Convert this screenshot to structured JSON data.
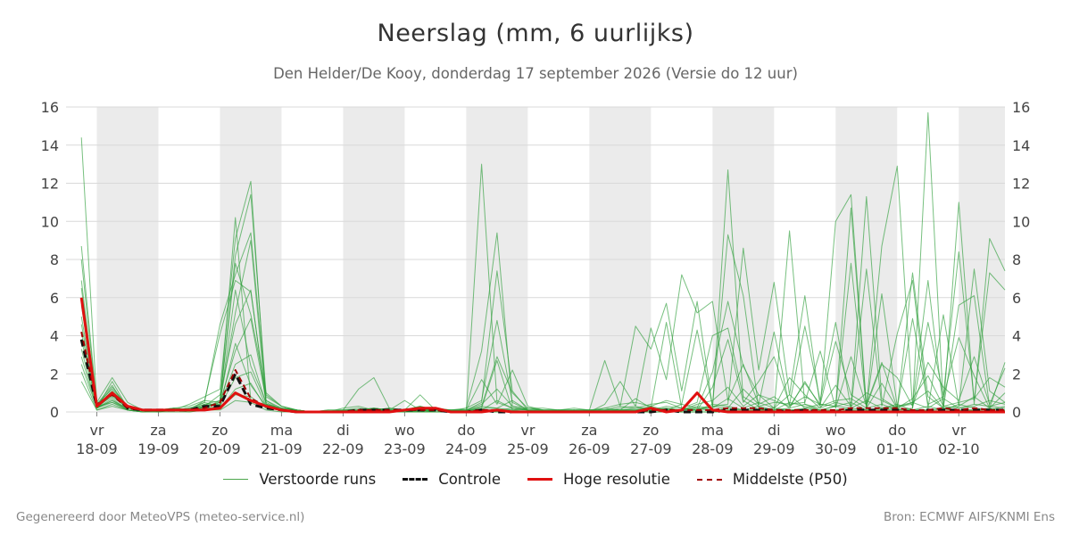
{
  "header": {
    "title": "Neerslag (mm, 6 uurlijks)",
    "subtitle": "Den Helder/De Kooy, donderdag 17 september 2026 (Versie do 12 uur)"
  },
  "footer": {
    "left": "Gegenereerd door MeteoVPS (meteo-service.nl)",
    "right": "Bron: ECMWF AIFS/KNMI Ens"
  },
  "colors": {
    "ensemble": "#2e9e3a",
    "control": "#111111",
    "hres": "#e01010",
    "p50": "#a00000",
    "weekend_band": "#ebebeb",
    "grid": "#d9d9d9"
  },
  "chart_data": {
    "type": "line",
    "title": "Neerslag (mm, 6 uurlijks)",
    "ylabel": "",
    "ylim": [
      0,
      16
    ],
    "yticks": [
      0,
      2,
      4,
      6,
      8,
      10,
      12,
      14,
      16
    ],
    "xlim": [
      "2026-09-17T12:00",
      "2026-10-02T18:00"
    ],
    "grid": true,
    "legend_position": "bottom",
    "x_tick_days": [
      {
        "day": "vr",
        "date": "18-09"
      },
      {
        "day": "za",
        "date": "19-09"
      },
      {
        "day": "zo",
        "date": "20-09"
      },
      {
        "day": "ma",
        "date": "21-09"
      },
      {
        "day": "di",
        "date": "22-09"
      },
      {
        "day": "wo",
        "date": "23-09"
      },
      {
        "day": "do",
        "date": "24-09"
      },
      {
        "day": "vr",
        "date": "25-09"
      },
      {
        "day": "za",
        "date": "26-09"
      },
      {
        "day": "zo",
        "date": "27-09"
      },
      {
        "day": "ma",
        "date": "28-09"
      },
      {
        "day": "di",
        "date": "29-09"
      },
      {
        "day": "wo",
        "date": "30-09"
      },
      {
        "day": "do",
        "date": "01-10"
      },
      {
        "day": "vr",
        "date": "02-10"
      }
    ],
    "shaded_day_bands": [
      [
        "2026-09-18T00:00",
        "2026-09-19T00:00"
      ],
      [
        "2026-09-20T00:00",
        "2026-09-21T00:00"
      ],
      [
        "2026-09-22T00:00",
        "2026-09-23T00:00"
      ],
      [
        "2026-09-24T00:00",
        "2026-09-25T00:00"
      ],
      [
        "2026-09-26T00:00",
        "2026-09-27T00:00"
      ],
      [
        "2026-09-28T00:00",
        "2026-09-29T00:00"
      ],
      [
        "2026-09-30T00:00",
        "2026-10-01T00:00"
      ],
      [
        "2026-10-02T00:00",
        "2026-10-02T18:00"
      ]
    ],
    "legend": [
      {
        "key": "ensemble",
        "label": "Verstoorde runs"
      },
      {
        "key": "control",
        "label": "Controle"
      },
      {
        "key": "hres",
        "label": "Hoge resolutie"
      },
      {
        "key": "p50",
        "label": "Middelste (P50)"
      }
    ],
    "x": [
      "2026-09-17T18:00",
      "2026-09-18T00:00",
      "2026-09-18T06:00",
      "2026-09-18T12:00",
      "2026-09-18T18:00",
      "2026-09-19T00:00",
      "2026-09-19T06:00",
      "2026-09-19T12:00",
      "2026-09-19T18:00",
      "2026-09-20T00:00",
      "2026-09-20T06:00",
      "2026-09-20T12:00",
      "2026-09-20T18:00",
      "2026-09-21T00:00",
      "2026-09-21T06:00",
      "2026-09-21T12:00",
      "2026-09-21T18:00",
      "2026-09-22T00:00",
      "2026-09-22T06:00",
      "2026-09-22T12:00",
      "2026-09-22T18:00",
      "2026-09-23T00:00",
      "2026-09-23T06:00",
      "2026-09-23T12:00",
      "2026-09-23T18:00",
      "2026-09-24T00:00",
      "2026-09-24T06:00",
      "2026-09-24T12:00",
      "2026-09-24T18:00",
      "2026-09-25T00:00",
      "2026-09-25T06:00",
      "2026-09-25T12:00",
      "2026-09-25T18:00",
      "2026-09-26T00:00",
      "2026-09-26T06:00",
      "2026-09-26T12:00",
      "2026-09-26T18:00",
      "2026-09-27T00:00",
      "2026-09-27T06:00",
      "2026-09-27T12:00",
      "2026-09-27T18:00",
      "2026-09-28T00:00",
      "2026-09-28T06:00",
      "2026-09-28T12:00",
      "2026-09-28T18:00",
      "2026-09-29T00:00",
      "2026-09-29T06:00",
      "2026-09-29T12:00",
      "2026-09-29T18:00",
      "2026-09-30T00:00",
      "2026-09-30T06:00",
      "2026-09-30T12:00",
      "2026-09-30T18:00",
      "2026-10-01T00:00",
      "2026-10-01T06:00",
      "2026-10-01T12:00",
      "2026-10-01T18:00",
      "2026-10-02T00:00",
      "2026-10-02T06:00",
      "2026-10-02T12:00",
      "2026-10-02T18:00"
    ],
    "series": [
      {
        "key": "control",
        "style": "dashed",
        "values": [
          3.8,
          0.3,
          1.0,
          0.2,
          0.1,
          0.1,
          0.1,
          0.1,
          0.3,
          0.3,
          2.0,
          0.4,
          0.2,
          0.1,
          0,
          0,
          0,
          0,
          0.1,
          0.1,
          0.1,
          0.1,
          0.1,
          0.1,
          0,
          0,
          0.1,
          0,
          0,
          0,
          0,
          0,
          0,
          0,
          0,
          0,
          0,
          0,
          0.1,
          0,
          0,
          0,
          0.1,
          0.1,
          0.1,
          0.1,
          0,
          0.1,
          0,
          0,
          0.1,
          0.1,
          0.1,
          0.1,
          0,
          0.1,
          0.1,
          0.1,
          0.1,
          0.1,
          0.1
        ]
      },
      {
        "key": "hres",
        "style": "solid",
        "values": [
          6.0,
          0.3,
          1.0,
          0.3,
          0.1,
          0.1,
          0.1,
          0.1,
          0.1,
          0.2,
          1.0,
          0.6,
          0.3,
          0.1,
          0,
          0,
          0,
          0,
          0,
          0,
          0,
          0.1,
          0.2,
          0.2,
          0,
          0,
          0,
          0.1,
          0,
          0,
          0,
          0,
          0,
          0,
          0,
          0,
          0,
          0.2,
          0,
          0.1,
          1.0,
          0.1,
          0,
          0,
          0,
          0,
          0,
          0,
          0,
          0,
          0,
          0,
          0,
          0,
          0,
          0,
          0,
          0,
          0,
          0,
          0
        ]
      },
      {
        "key": "p50",
        "style": "dashed",
        "values": [
          4.2,
          0.4,
          0.9,
          0.2,
          0.1,
          0.1,
          0.1,
          0.1,
          0.2,
          0.5,
          2.2,
          0.7,
          0.3,
          0.1,
          0,
          0,
          0,
          0,
          0.1,
          0.1,
          0.1,
          0.1,
          0.1,
          0.1,
          0,
          0,
          0.1,
          0.1,
          0,
          0,
          0,
          0,
          0,
          0,
          0,
          0,
          0,
          0.1,
          0.1,
          0.1,
          0.1,
          0.1,
          0.2,
          0.2,
          0.2,
          0.1,
          0.1,
          0.1,
          0.1,
          0.1,
          0.2,
          0.2,
          0.2,
          0.2,
          0.1,
          0.1,
          0.2,
          0.1,
          0.2,
          0.1,
          0.1
        ]
      }
    ],
    "ensemble_values": [
      [
        14.4,
        0.5,
        1.8,
        0.5,
        0.1,
        0.1,
        0.2,
        0.3,
        0.6,
        0.5,
        10.2,
        0.6,
        0.3,
        0.1,
        0,
        0,
        0,
        0.1,
        0.1,
        0.2,
        0.1,
        0.1,
        0.1,
        0.1,
        0,
        0,
        13.0,
        0.5,
        0.2,
        0.1,
        0,
        0.1,
        0.2,
        0.1,
        0,
        0.2,
        0.3,
        0.1,
        0.2,
        0.1,
        0.3,
        0.2,
        12.7,
        0.6,
        0.1,
        0.1,
        0.5,
        0.3,
        0.1,
        0.3,
        10.7,
        0.2,
        0.4,
        0.1,
        0.2,
        15.7,
        0.3,
        0.2,
        0.3,
        0.6,
        0.4
      ],
      [
        8.7,
        0.4,
        1.2,
        0.3,
        0.1,
        0.1,
        0.1,
        0.4,
        0.8,
        1.2,
        9.1,
        12.1,
        0.4,
        0.2,
        0.1,
        0,
        0,
        0.2,
        0.3,
        0.1,
        0.1,
        0,
        0.1,
        0,
        0.1,
        0.2,
        3.2,
        9.4,
        0.3,
        0.1,
        0,
        0.1,
        0,
        0.1,
        0.2,
        0.4,
        0.5,
        0.3,
        0.6,
        0.4,
        4.3,
        0.3,
        9.3,
        6.1,
        0.2,
        0.1,
        9.5,
        0.4,
        0.2,
        0.5,
        0.3,
        11.3,
        0.7,
        0.2,
        7.3,
        0.8,
        0.2,
        11.0,
        0.4,
        9.1,
        7.4
      ],
      [
        8.0,
        0.3,
        0.9,
        0.2,
        0.1,
        0,
        0.1,
        0.2,
        0.5,
        4.6,
        7.2,
        9.4,
        0.8,
        0.3,
        0.1,
        0,
        0.1,
        0.1,
        1.2,
        1.8,
        0.2,
        0.1,
        0,
        0.2,
        0.1,
        0.1,
        0.5,
        7.4,
        1.1,
        0.1,
        0.1,
        0,
        0.1,
        0.1,
        2.7,
        0.3,
        4.5,
        3.3,
        5.7,
        1.1,
        5.8,
        0.3,
        0.4,
        8.6,
        2.2,
        6.8,
        0.9,
        6.1,
        0.3,
        10.0,
        11.4,
        0.3,
        8.7,
        12.9,
        0.2,
        4.7,
        0.9,
        8.4,
        0.6,
        7.3,
        6.4
      ],
      [
        6.9,
        0.2,
        0.6,
        0.1,
        0,
        0.1,
        0.1,
        0.1,
        0.4,
        0.6,
        8.2,
        11.4,
        0.9,
        0.3,
        0.1,
        0,
        0,
        0,
        0.1,
        0.2,
        0.1,
        0.6,
        0.1,
        0.1,
        0,
        0.2,
        0.6,
        4.8,
        0.5,
        0.1,
        0,
        0,
        0.1,
        0,
        0.4,
        1.6,
        0.3,
        4.4,
        1.7,
        7.2,
        5.2,
        5.8,
        0.6,
        2.5,
        0.4,
        4.2,
        0.3,
        1.5,
        0.4,
        0.3,
        7.8,
        0.2,
        6.2,
        0.3,
        0.4,
        6.9,
        0.2,
        5.6,
        6.1,
        0.3,
        0.2
      ],
      [
        6.5,
        0.3,
        0.5,
        0.2,
        0.1,
        0.1,
        0.1,
        0.1,
        0.6,
        4.1,
        6.9,
        6.3,
        0.6,
        0.1,
        0,
        0,
        0,
        0,
        0.1,
        0.1,
        0.1,
        0.1,
        0.3,
        0.1,
        0,
        0,
        0.3,
        2.9,
        1.0,
        0.2,
        0.1,
        0.1,
        0,
        0,
        0.2,
        0.1,
        0.7,
        0.2,
        4.7,
        0.2,
        0.5,
        4.0,
        4.4,
        0.8,
        0.3,
        0.5,
        0.4,
        4.5,
        0.6,
        4.7,
        0.2,
        7.5,
        0.3,
        4.1,
        6.9,
        0.2,
        5.1,
        0.3,
        7.5,
        1.1,
        0.5
      ],
      [
        6.0,
        0.2,
        1.6,
        0.2,
        0.1,
        0.1,
        0.2,
        0.1,
        0.3,
        0.5,
        5.2,
        9.0,
        0.4,
        0.2,
        0.1,
        0,
        0.1,
        0.1,
        0.2,
        0.1,
        0.2,
        0.1,
        0.9,
        0.1,
        0.1,
        0.1,
        1.7,
        0.4,
        2.2,
        0.3,
        0.1,
        0,
        0.1,
        0.1,
        0,
        0.1,
        0.1,
        0.3,
        0.1,
        0.4,
        0.2,
        2.1,
        5.8,
        2.4,
        0.9,
        0.6,
        0.3,
        0.8,
        0.4,
        3.7,
        0.9,
        0.4,
        2.6,
        0.2,
        4.9,
        0.4,
        0.8,
        3.9,
        1.9,
        0.2,
        2.6
      ],
      [
        5.6,
        0.4,
        1.4,
        0.1,
        0,
        0.1,
        0.1,
        0.2,
        0.2,
        0.6,
        7.8,
        5.1,
        1.0,
        0.3,
        0.1,
        0,
        0,
        0.1,
        0,
        0.1,
        0.2,
        0.1,
        0.3,
        0.1,
        0.1,
        0.1,
        0.4,
        1.2,
        0.3,
        0.2,
        0.2,
        0.1,
        0.1,
        0,
        0.1,
        0.3,
        0.2,
        0.4,
        0.5,
        0.2,
        0.1,
        1.3,
        3.8,
        0.5,
        1.6,
        2.9,
        0.4,
        0.5,
        3.2,
        0.2,
        2.9,
        0.3,
        2.5,
        1.8,
        0.3,
        2.6,
        1.3,
        0.6,
        2.9,
        0.4,
        2.3
      ],
      [
        5.0,
        0.3,
        1.3,
        0.3,
        0.1,
        0.1,
        0.1,
        0.1,
        0.4,
        0.4,
        6.4,
        2.4,
        0.5,
        0.1,
        0.1,
        0,
        0,
        0,
        0.1,
        0.1,
        0.1,
        0.1,
        0.1,
        0.2,
        0.1,
        0.1,
        0.2,
        2.7,
        0.1,
        0.2,
        0.1,
        0.1,
        0,
        0.1,
        0.1,
        0.1,
        0.2,
        0.2,
        0.1,
        0.1,
        0.4,
        0.6,
        1.3,
        0.3,
        0.9,
        0.2,
        1.8,
        0.9,
        0.2,
        1.4,
        0.3,
        1.0,
        0.6,
        0.2,
        0.7,
        1.9,
        0.3,
        0.5,
        0.7,
        1.8,
        1.3
      ],
      [
        4.6,
        0.3,
        1.1,
        0.3,
        0.1,
        0.1,
        0.2,
        0.1,
        0.3,
        0.9,
        4.6,
        6.4,
        0.4,
        0.2,
        0.1,
        0,
        0,
        0.1,
        0.1,
        0.2,
        0.1,
        0.1,
        0.1,
        0.1,
        0.1,
        0.1,
        0.3,
        0.2,
        0.6,
        0.1,
        0.1,
        0.1,
        0.1,
        0.1,
        0.1,
        0.1,
        0.1,
        0.1,
        0.3,
        0.2,
        0.1,
        0.3,
        0.2,
        1.2,
        0.4,
        0.8,
        0.2,
        1.6,
        0.3,
        0.6,
        0.7,
        0.2,
        1.5,
        0.2,
        0.5,
        1.1,
        0.2,
        0.3,
        0.8,
        0.2,
        1.0
      ],
      [
        4.2,
        0.2,
        0.9,
        0.2,
        0.1,
        0,
        0.1,
        0.1,
        0.5,
        0.3,
        3.6,
        1.4,
        0.3,
        0.1,
        0,
        0,
        0,
        0.1,
        0.1,
        0.1,
        0,
        0.1,
        0.2,
        0.1,
        0.1,
        0.1,
        0.1,
        0.6,
        0.2,
        0.1,
        0.1,
        0.1,
        0.1,
        0.1,
        0.1,
        0.1,
        0.1,
        0.2,
        0.1,
        0.1,
        0.2,
        0.2,
        0.7,
        0.2,
        0.5,
        0.2,
        0.9,
        0.2,
        0.4,
        0.3,
        0.2,
        0.6,
        0.2,
        0.3,
        0.5,
        0.2,
        0.7,
        0.2,
        0.4,
        0.3,
        0.5
      ],
      [
        3.8,
        0.3,
        0.8,
        0.2,
        0.1,
        0.1,
        0.1,
        0.2,
        0.2,
        0.5,
        3.2,
        4.9,
        0.6,
        0.2,
        0.1,
        0,
        0,
        0,
        0.1,
        0.1,
        0.1,
        0,
        0.1,
        0.1,
        0.1,
        0,
        0.2,
        0.2,
        0.1,
        0.1,
        0,
        0.1,
        0.1,
        0,
        0.1,
        0.1,
        0.1,
        0.1,
        0.2,
        0.1,
        0.1,
        0.4,
        0.3,
        0.1,
        0.3,
        0.1,
        0.2,
        0.4,
        0.1,
        0.3,
        0.5,
        0.1,
        0.2,
        0.4,
        0.1,
        0.3,
        0.1,
        0.4,
        0.2,
        0.1,
        0.3
      ],
      [
        3.3,
        0.2,
        0.7,
        0.1,
        0,
        0.1,
        0.1,
        0.1,
        0.3,
        0.4,
        2.5,
        3.0,
        0.4,
        0.1,
        0,
        0,
        0,
        0,
        0.1,
        0,
        0.1,
        0.1,
        0,
        0.1,
        0,
        0.1,
        0.1,
        0.1,
        0.2,
        0.1,
        0.1,
        0,
        0,
        0.1,
        0.1,
        0.1,
        0.1,
        0.1,
        0.1,
        0.1,
        0.2,
        0.1,
        0.2,
        0.1,
        0.1,
        0.2,
        0.1,
        0.2,
        0.1,
        0.1,
        0.2,
        0.1,
        0.1,
        0.2,
        0.1,
        0.1,
        0.2,
        0.1,
        0.1,
        0.2,
        0.1
      ],
      [
        2.9,
        0.2,
        0.6,
        0.2,
        0.1,
        0.1,
        0.1,
        0.1,
        0.2,
        0.3,
        1.8,
        2.1,
        0.3,
        0.1,
        0,
        0,
        0,
        0,
        0,
        0.1,
        0.1,
        0,
        0.1,
        0,
        0,
        0,
        0.1,
        0.1,
        0.1,
        0,
        0,
        0,
        0.1,
        0,
        0,
        0.1,
        0,
        0.1,
        0.1,
        0,
        0.1,
        0.1,
        0.1,
        0.1,
        0.1,
        0.1,
        0.1,
        0.1,
        0.1,
        0.1,
        0.1,
        0.1,
        0.1,
        0.1,
        0.1,
        0.1,
        0.1,
        0.1,
        0.1,
        0.1,
        0.1
      ],
      [
        2.5,
        0.2,
        0.5,
        0.1,
        0.1,
        0,
        0.1,
        0.1,
        0.2,
        0.2,
        1.2,
        1.5,
        0.2,
        0.1,
        0,
        0,
        0,
        0,
        0,
        0,
        0,
        0,
        0,
        0,
        0,
        0,
        0,
        0.1,
        0,
        0,
        0,
        0,
        0,
        0,
        0,
        0,
        0,
        0,
        0,
        0,
        0,
        0,
        0.1,
        0,
        0,
        0,
        0.1,
        0,
        0,
        0,
        0.1,
        0,
        0,
        0,
        0.1,
        0,
        0,
        0,
        0.1,
        0,
        0
      ],
      [
        2.1,
        0.1,
        0.4,
        0.1,
        0,
        0,
        0.1,
        0,
        0.1,
        0.2,
        0.9,
        0.8,
        0.2,
        0.1,
        0,
        0,
        0,
        0,
        0,
        0,
        0,
        0,
        0,
        0,
        0,
        0,
        0,
        0,
        0,
        0,
        0,
        0,
        0,
        0,
        0,
        0,
        0,
        0,
        0,
        0,
        0,
        0,
        0,
        0,
        0,
        0,
        0,
        0,
        0,
        0,
        0,
        0,
        0,
        0,
        0,
        0,
        0,
        0,
        0,
        0,
        0
      ],
      [
        1.6,
        0.1,
        0.3,
        0.1,
        0,
        0,
        0,
        0,
        0.1,
        0.1,
        0.6,
        0.5,
        0.1,
        0,
        0,
        0,
        0,
        0,
        0,
        0,
        0,
        0,
        0,
        0,
        0,
        0,
        0,
        0,
        0,
        0,
        0,
        0,
        0,
        0,
        0,
        0,
        0,
        0,
        0,
        0,
        0,
        0,
        0,
        0,
        0,
        0,
        0,
        0,
        0,
        0,
        0,
        0,
        0,
        0,
        0,
        0,
        0,
        0,
        0,
        0,
        0
      ]
    ]
  }
}
